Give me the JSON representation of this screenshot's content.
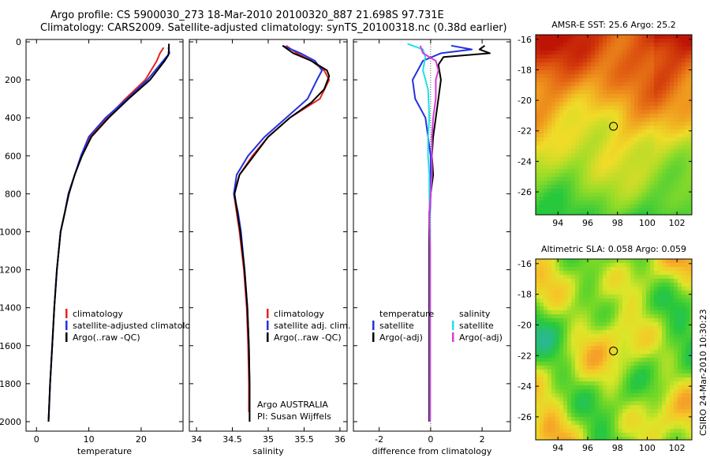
{
  "header": {
    "line1": "Argo profile: CS 5900030_273 18-Mar-2010 20100320_887 21.698S 97.731E",
    "line2": "Climatology: CARS2009. Satellite-adjusted climatology: synTS_20100318.nc (0.38d earlier)"
  },
  "credit": "CSIRO 24-Mar-2010 10:30:23",
  "colors": {
    "climatology": "#e8231d",
    "satellite": "#2331e0",
    "argo": "#000000",
    "sal_satellite": "#22dfe8",
    "sal_argo": "#d93ad9"
  },
  "chart_data": [
    {
      "type": "line",
      "xlabel": "temperature",
      "ylim": [
        0,
        2050
      ],
      "xlim": [
        -2,
        28
      ],
      "xticks": [
        0,
        10,
        20
      ],
      "yticks": [
        0,
        200,
        400,
        600,
        800,
        1000,
        1200,
        1400,
        1600,
        1800,
        2000
      ],
      "legend": [
        "climatology",
        "satellite-adjusted climatology",
        "Argo(..raw -QC)"
      ],
      "series": [
        {
          "name": "climatology",
          "color": "#e8231d",
          "points": [
            [
              24.3,
              30
            ],
            [
              23.6,
              60
            ],
            [
              23.0,
              100
            ],
            [
              20.8,
              200
            ],
            [
              17.0,
              300
            ],
            [
              13.5,
              400
            ],
            [
              10.2,
              500
            ],
            [
              8.6,
              600
            ],
            [
              7.3,
              700
            ],
            [
              6.1,
              800
            ],
            [
              5.4,
              900
            ],
            [
              4.6,
              1000
            ],
            [
              3.9,
              1200
            ],
            [
              3.4,
              1400
            ],
            [
              3.0,
              1600
            ],
            [
              2.6,
              1800
            ],
            [
              2.3,
              2000
            ]
          ]
        },
        {
          "name": "satellite-adjusted climatology",
          "color": "#2331e0",
          "points": [
            [
              25.2,
              30
            ],
            [
              25.4,
              60
            ],
            [
              24.2,
              100
            ],
            [
              21.2,
              200
            ],
            [
              17.3,
              300
            ],
            [
              13.2,
              400
            ],
            [
              10.0,
              500
            ],
            [
              8.5,
              600
            ],
            [
              7.3,
              700
            ],
            [
              6.1,
              800
            ],
            [
              5.4,
              900
            ],
            [
              4.6,
              1000
            ],
            [
              3.9,
              1200
            ],
            [
              3.4,
              1400
            ],
            [
              3.0,
              1600
            ],
            [
              2.6,
              1800
            ],
            [
              2.3,
              2000
            ]
          ]
        },
        {
          "name": "Argo(..raw -QC)",
          "color": "#000000",
          "points": [
            [
              25.3,
              10
            ],
            [
              25.3,
              40
            ],
            [
              25.2,
              70
            ],
            [
              24.5,
              100
            ],
            [
              21.7,
              200
            ],
            [
              17.6,
              300
            ],
            [
              13.8,
              400
            ],
            [
              10.5,
              500
            ],
            [
              8.7,
              600
            ],
            [
              7.3,
              700
            ],
            [
              6.2,
              800
            ],
            [
              5.4,
              900
            ],
            [
              4.6,
              1000
            ],
            [
              3.9,
              1200
            ],
            [
              3.4,
              1400
            ],
            [
              3.0,
              1600
            ],
            [
              2.6,
              1800
            ],
            [
              2.3,
              2000
            ]
          ]
        }
      ]
    },
    {
      "type": "line",
      "xlabel": "salinity",
      "ylim": [
        0,
        2050
      ],
      "xlim": [
        33.9,
        36.1
      ],
      "xticks": [
        34,
        34.5,
        35,
        35.5,
        36
      ],
      "legend": [
        "climatology",
        "satellite adj. clim.",
        "Argo(..raw -QC)"
      ],
      "annotations": [
        "Argo AUSTRALIA",
        "PI: Susan Wijffels"
      ],
      "series": [
        {
          "name": "climatology",
          "color": "#e8231d",
          "points": [
            [
              35.25,
              20
            ],
            [
              35.4,
              60
            ],
            [
              35.6,
              100
            ],
            [
              35.78,
              150
            ],
            [
              35.85,
              200
            ],
            [
              35.72,
              300
            ],
            [
              35.3,
              400
            ],
            [
              35.0,
              500
            ],
            [
              34.78,
              600
            ],
            [
              34.6,
              700
            ],
            [
              34.52,
              800
            ],
            [
              34.56,
              900
            ],
            [
              34.6,
              1000
            ],
            [
              34.66,
              1200
            ],
            [
              34.7,
              1400
            ],
            [
              34.72,
              1600
            ],
            [
              34.73,
              1800
            ],
            [
              34.73,
              1950
            ]
          ]
        },
        {
          "name": "satellite adj. clim.",
          "color": "#2331e0",
          "points": [
            [
              35.2,
              20
            ],
            [
              35.45,
              60
            ],
            [
              35.65,
              100
            ],
            [
              35.75,
              150
            ],
            [
              35.68,
              200
            ],
            [
              35.55,
              300
            ],
            [
              35.25,
              400
            ],
            [
              34.95,
              500
            ],
            [
              34.72,
              600
            ],
            [
              34.56,
              700
            ],
            [
              34.52,
              800
            ],
            [
              34.58,
              900
            ],
            [
              34.62,
              1000
            ],
            [
              34.67,
              1200
            ],
            [
              34.71,
              1400
            ],
            [
              34.73,
              1600
            ],
            [
              34.74,
              1800
            ],
            [
              34.74,
              2000
            ]
          ]
        },
        {
          "name": "Argo(..raw -QC)",
          "color": "#000000",
          "points": [
            [
              35.2,
              20
            ],
            [
              35.35,
              60
            ],
            [
              35.6,
              100
            ],
            [
              35.82,
              150
            ],
            [
              35.85,
              180
            ],
            [
              35.78,
              250
            ],
            [
              35.6,
              320
            ],
            [
              35.3,
              400
            ],
            [
              35.0,
              500
            ],
            [
              34.8,
              600
            ],
            [
              34.6,
              700
            ],
            [
              34.53,
              800
            ],
            [
              34.57,
              900
            ],
            [
              34.61,
              1000
            ],
            [
              34.67,
              1200
            ],
            [
              34.71,
              1400
            ],
            [
              34.73,
              1600
            ],
            [
              34.74,
              1800
            ],
            [
              34.74,
              2000
            ]
          ]
        }
      ]
    },
    {
      "type": "line",
      "xlabel": "difference from climatology",
      "ylim": [
        0,
        2050
      ],
      "xlim": [
        -3,
        3.1
      ],
      "xticks": [
        -2,
        0,
        2
      ],
      "legend_left": [
        "temperature",
        "satellite",
        "Argo(-adj)"
      ],
      "legend_right": [
        "salinity",
        "satellite",
        "Argo(-adj)"
      ],
      "series": [
        {
          "name": "temperature satellite",
          "color": "#2331e0",
          "points": [
            [
              0.8,
              20
            ],
            [
              1.6,
              40
            ],
            [
              0.4,
              60
            ],
            [
              -0.3,
              100
            ],
            [
              -0.7,
              200
            ],
            [
              -0.6,
              300
            ],
            [
              -0.2,
              400
            ],
            [
              -0.1,
              500
            ],
            [
              0.0,
              600
            ],
            [
              0.0,
              800
            ],
            [
              -0.05,
              1000
            ],
            [
              -0.05,
              1400
            ],
            [
              -0.05,
              2000
            ]
          ]
        },
        {
          "name": "temperature Argo(-adj)",
          "color": "#000000",
          "points": [
            [
              2.1,
              20
            ],
            [
              1.9,
              40
            ],
            [
              2.3,
              60
            ],
            [
              0.5,
              80
            ],
            [
              0.3,
              120
            ],
            [
              0.4,
              200
            ],
            [
              0.3,
              300
            ],
            [
              0.2,
              400
            ],
            [
              0.1,
              500
            ],
            [
              0.05,
              600
            ],
            [
              0.1,
              700
            ],
            [
              0.0,
              800
            ],
            [
              -0.05,
              900
            ],
            [
              -0.05,
              1200
            ],
            [
              -0.05,
              2000
            ]
          ]
        },
        {
          "name": "salinity satellite",
          "color": "#22dfe8",
          "points": [
            [
              -0.9,
              10
            ],
            [
              -0.3,
              40
            ],
            [
              -0.2,
              80
            ],
            [
              -0.3,
              150
            ],
            [
              -0.1,
              250
            ],
            [
              -0.05,
              400
            ],
            [
              -0.1,
              500
            ],
            [
              -0.1,
              600
            ],
            [
              -0.05,
              700
            ],
            [
              -0.05,
              800
            ],
            [
              -0.02,
              1000
            ],
            [
              -0.02,
              1400
            ],
            [
              -0.02,
              2000
            ]
          ]
        },
        {
          "name": "salinity Argo(-adj)",
          "color": "#d93ad9",
          "points": [
            [
              -0.4,
              20
            ],
            [
              -0.3,
              60
            ],
            [
              0.2,
              100
            ],
            [
              0.3,
              150
            ],
            [
              0.2,
              200
            ],
            [
              0.2,
              300
            ],
            [
              0.1,
              400
            ],
            [
              0.05,
              500
            ],
            [
              0.05,
              700
            ],
            [
              0.0,
              800
            ],
            [
              -0.05,
              900
            ],
            [
              -0.02,
              1100
            ],
            [
              -0.02,
              1400
            ],
            [
              -0.02,
              2000
            ]
          ]
        }
      ]
    },
    {
      "type": "heatmap",
      "title": "AMSR-E SST: 25.6 Argo: 25.2",
      "xticks": [
        94,
        96,
        98,
        100,
        102
      ],
      "yticks": [
        -16,
        -18,
        -20,
        -22,
        -24,
        -26
      ],
      "xlim": [
        92.5,
        103
      ],
      "ylim": [
        -27.5,
        -15.7
      ],
      "marker": [
        97.73,
        -21.7
      ],
      "palette": "warm"
    },
    {
      "type": "heatmap",
      "title": "Altimetric SLA: 0.058 Argo: 0.059",
      "xticks": [
        94,
        96,
        98,
        100,
        102
      ],
      "yticks": [
        -16,
        -18,
        -20,
        -22,
        -24,
        -26
      ],
      "xlim": [
        92.5,
        103
      ],
      "ylim": [
        -27.5,
        -15.7
      ],
      "marker": [
        97.73,
        -21.7
      ],
      "palette": "cool"
    }
  ]
}
